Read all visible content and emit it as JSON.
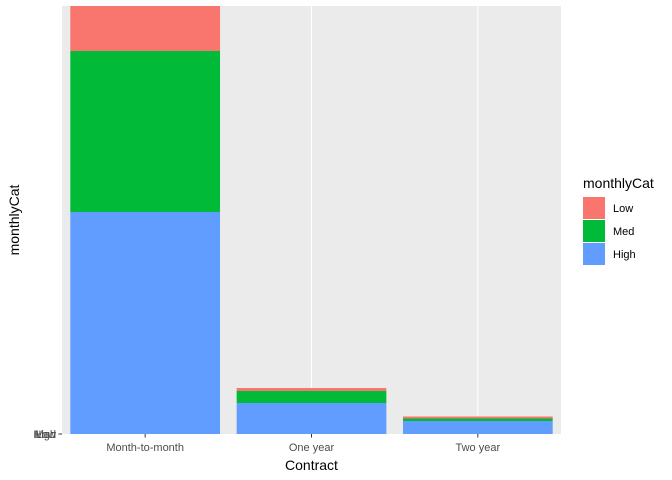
{
  "chart_data": {
    "type": "bar",
    "stacked": true,
    "xlabel": "Contract",
    "ylabel": "monthlyCat",
    "categories": [
      "Month-to-month",
      "One year",
      "Two year"
    ],
    "series": [
      {
        "name": "High",
        "color": "#619CFF",
        "values": [
          2220,
          310,
          130
        ]
      },
      {
        "name": "Med",
        "color": "#00BA38",
        "values": [
          1610,
          120,
          25
        ]
      },
      {
        "name": "Low",
        "color": "#F8766D",
        "values": [
          450,
          30,
          20
        ]
      }
    ],
    "y_tick_labels": [
      "Low",
      "Med",
      "High"
    ],
    "ylim": [
      0,
      4280
    ],
    "grid": true,
    "panel_background": "#EBEBEB",
    "gridline_color": "#FFFFFF",
    "legend": {
      "title": "monthlyCat",
      "placement": "right",
      "entries": [
        "Low",
        "Med",
        "High"
      ]
    }
  }
}
